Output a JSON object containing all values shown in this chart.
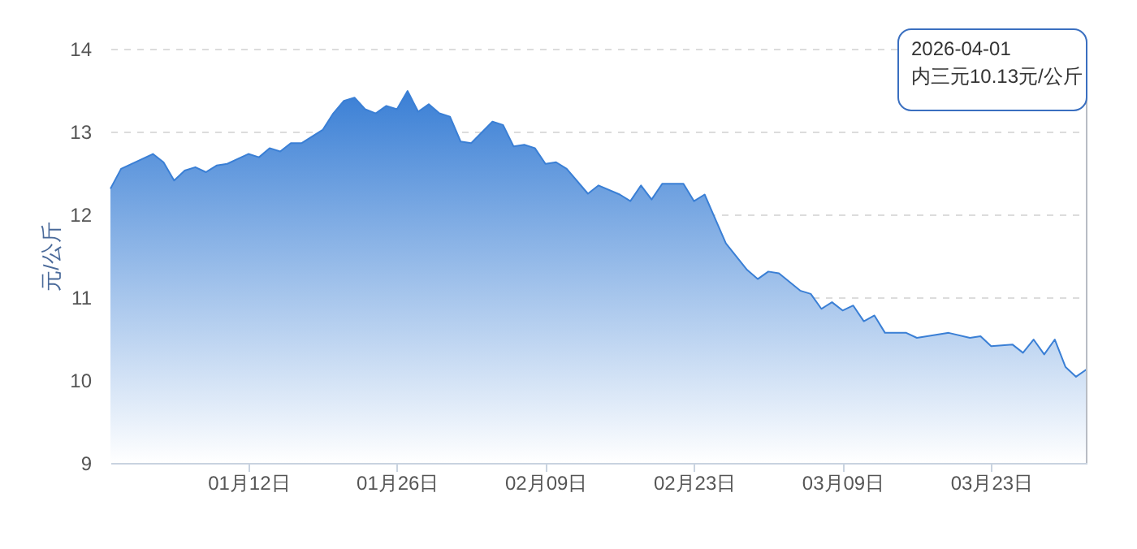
{
  "chart_data": {
    "type": "area",
    "ylabel": "元/公斤",
    "x": [
      "2025-12-30",
      "2025-12-31",
      "2026-01-03",
      "2026-01-04",
      "2026-01-05",
      "2026-01-06",
      "2026-01-07",
      "2026-01-08",
      "2026-01-09",
      "2026-01-10",
      "2026-01-11",
      "2026-01-12",
      "2026-01-13",
      "2026-01-14",
      "2026-01-15",
      "2026-01-16",
      "2026-01-17",
      "2026-01-19",
      "2026-01-20",
      "2026-01-21",
      "2026-01-22",
      "2026-01-23",
      "2026-01-24",
      "2026-01-25",
      "2026-01-26",
      "2026-01-27",
      "2026-01-28",
      "2026-01-29",
      "2026-01-30",
      "2026-01-31",
      "2026-02-01",
      "2026-02-02",
      "2026-02-04",
      "2026-02-05",
      "2026-02-06",
      "2026-02-07",
      "2026-02-08",
      "2026-02-09",
      "2026-02-10",
      "2026-02-11",
      "2026-02-13",
      "2026-02-14",
      "2026-02-16",
      "2026-02-17",
      "2026-02-18",
      "2026-02-19",
      "2026-02-20",
      "2026-02-22",
      "2026-02-23",
      "2026-02-24",
      "2026-02-26",
      "2026-02-28",
      "2026-03-01",
      "2026-03-02",
      "2026-03-03",
      "2026-03-05",
      "2026-03-06",
      "2026-03-07",
      "2026-03-08",
      "2026-03-09",
      "2026-03-10",
      "2026-03-11",
      "2026-03-12",
      "2026-03-13",
      "2026-03-15",
      "2026-03-16",
      "2026-03-19",
      "2026-03-21",
      "2026-03-22",
      "2026-03-23",
      "2026-03-25",
      "2026-03-26",
      "2026-03-27",
      "2026-03-28",
      "2026-03-29",
      "2026-03-30",
      "2026-03-31",
      "2026-04-01"
    ],
    "series": [
      {
        "color": "#3a7fd5",
        "values": [
          12.31,
          12.55,
          12.73,
          12.63,
          12.41,
          12.53,
          12.57,
          12.51,
          12.59,
          12.61,
          12.67,
          12.73,
          12.69,
          12.8,
          12.76,
          12.86,
          12.86,
          13.02,
          13.22,
          13.37,
          13.41,
          13.27,
          13.22,
          13.31,
          13.27,
          13.49,
          13.24,
          13.33,
          13.22,
          13.18,
          12.88,
          12.86,
          13.12,
          13.08,
          12.82,
          12.84,
          12.8,
          12.61,
          12.63,
          12.55,
          12.25,
          12.35,
          12.24,
          12.16,
          12.35,
          12.18,
          12.37,
          12.37,
          12.16,
          12.24,
          11.65,
          11.33,
          11.22,
          11.31,
          11.29,
          11.08,
          11.04,
          10.86,
          10.94,
          10.84,
          10.9,
          10.71,
          10.78,
          10.57,
          10.57,
          10.51,
          10.57,
          10.51,
          10.53,
          10.41,
          10.43,
          10.33,
          10.49,
          10.31,
          10.49,
          10.16,
          10.04,
          10.13
        ]
      }
    ],
    "xlim": [
      "2025-12-30",
      "2026-04-01"
    ],
    "xticks": [
      {
        "value": "2026-01-12",
        "label": "01月12日"
      },
      {
        "value": "2026-01-26",
        "label": "01月26日"
      },
      {
        "value": "2026-02-09",
        "label": "02月09日"
      },
      {
        "value": "2026-02-23",
        "label": "02月23日"
      },
      {
        "value": "2026-03-09",
        "label": "03月09日"
      },
      {
        "value": "2026-03-23",
        "label": "03月23日"
      }
    ],
    "ylim": [
      9,
      14
    ],
    "yticks": [
      9,
      10,
      11,
      12,
      13,
      14
    ],
    "grid": "y",
    "ref_lines": [
      {
        "axis": "x",
        "value": "2026-04-01",
        "color": "#b8bcc4"
      }
    ],
    "annotations": [
      "2026-04-01\n内三元10.13元/公斤"
    ]
  }
}
